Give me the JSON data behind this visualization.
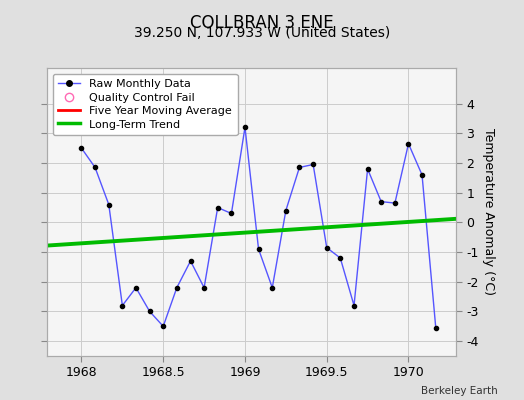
{
  "title": "COLLBRAN 3 ENE",
  "subtitle": "39.250 N, 107.933 W (United States)",
  "attribution": "Berkeley Earth",
  "ylabel": "Temperature Anomaly (°C)",
  "xlim": [
    1967.79,
    1970.29
  ],
  "ylim": [
    -4.5,
    5.2
  ],
  "yticks": [
    -4,
    -3,
    -2,
    -1,
    0,
    1,
    2,
    3,
    4
  ],
  "xticks": [
    1968,
    1968.5,
    1969,
    1969.5,
    1970
  ],
  "xtick_labels": [
    "1968",
    "1968.5",
    "1969",
    "1969.5",
    "1970"
  ],
  "background_color": "#e0e0e0",
  "plot_bg_color": "#f5f5f5",
  "raw_x": [
    1968.0,
    1968.083,
    1968.167,
    1968.25,
    1968.333,
    1968.417,
    1968.5,
    1968.583,
    1968.667,
    1968.75,
    1968.833,
    1968.917,
    1969.0,
    1969.083,
    1969.167,
    1969.25,
    1969.333,
    1969.417,
    1969.5,
    1969.583,
    1969.667,
    1969.75,
    1969.833,
    1969.917,
    1970.0,
    1970.083,
    1970.167
  ],
  "raw_y": [
    2.5,
    1.85,
    0.6,
    -2.8,
    -2.2,
    -3.0,
    -3.5,
    -2.2,
    -1.3,
    -2.2,
    0.5,
    0.3,
    3.2,
    -0.9,
    -2.2,
    0.4,
    1.85,
    1.95,
    -0.85,
    -1.2,
    -2.8,
    1.8,
    0.7,
    0.65,
    2.65,
    1.6,
    -3.55
  ],
  "trend_x": [
    1967.79,
    1970.29
  ],
  "trend_y": [
    -0.78,
    0.12
  ],
  "raw_line_color": "#5555ff",
  "raw_marker_color": "#000000",
  "trend_color": "#00bb00",
  "ma_color": "#ff0000",
  "qc_color": "#ff69b4",
  "grid_color": "#cccccc",
  "title_fontsize": 12,
  "subtitle_fontsize": 10,
  "tick_fontsize": 9,
  "ylabel_fontsize": 9,
  "legend_fontsize": 8
}
